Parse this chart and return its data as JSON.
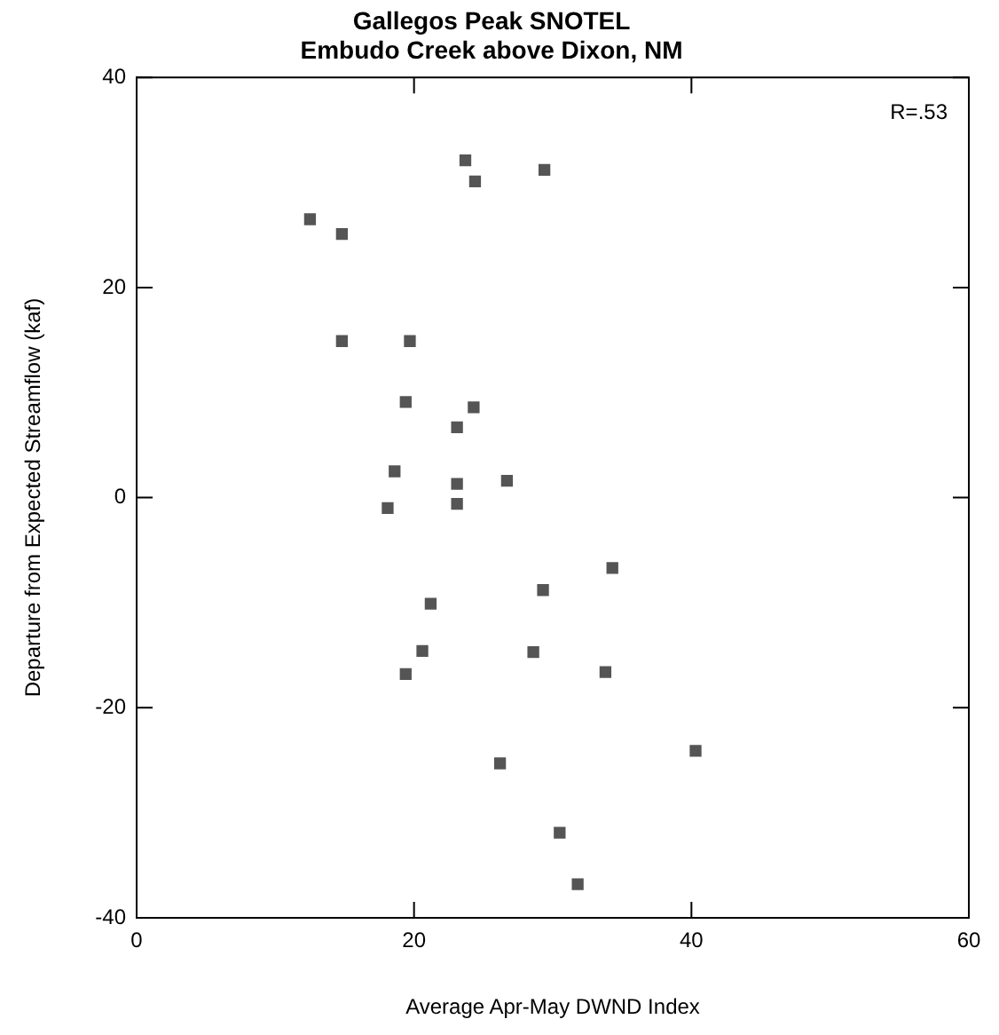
{
  "chart_data": {
    "type": "scatter",
    "title": "Gallegos Peak SNOTEL",
    "subtitle": "Embudo Creek above Dixon, NM",
    "xlabel": "Average Apr-May DWND Index",
    "ylabel": "Departure from Expected Streamflow (kaf)",
    "annotations": [
      "R=.53"
    ],
    "marker": "square",
    "grid": false,
    "xlim": [
      0,
      60
    ],
    "xticks": [
      0,
      20,
      40,
      60
    ],
    "ylim": [
      -40,
      40
    ],
    "yticks": [
      -40,
      -20,
      0,
      20,
      40
    ],
    "series": [
      {
        "color": "#555555",
        "x": [
          23.7,
          24.4,
          29.4,
          12.5,
          14.8,
          14.8,
          19.7,
          19.4,
          24.3,
          23.1,
          18.6,
          23.1,
          26.7,
          18.1,
          23.1,
          34.3,
          29.3,
          21.2,
          20.6,
          28.6,
          19.4,
          33.8,
          40.3,
          26.2,
          30.5,
          31.8
        ],
        "values": [
          32.1,
          30.1,
          31.2,
          26.5,
          25.1,
          14.9,
          14.9,
          9.1,
          8.6,
          6.7,
          2.5,
          1.3,
          1.6,
          -1.0,
          -0.6,
          -6.7,
          -8.8,
          -10.1,
          -14.6,
          -14.7,
          -16.8,
          -16.6,
          -24.1,
          -25.3,
          -31.9,
          -36.8
        ]
      }
    ]
  }
}
